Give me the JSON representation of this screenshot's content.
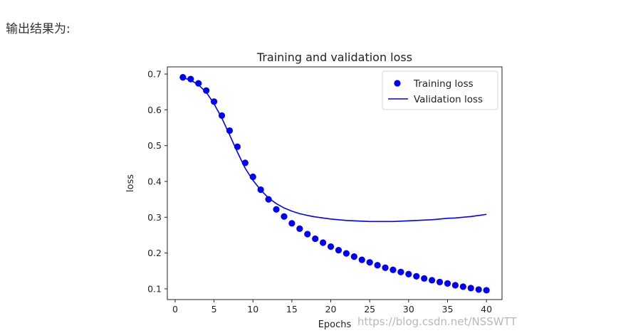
{
  "caption": "输出结果为:",
  "watermark": "https://blog.csdn.net/NSSWTT",
  "chart_data": {
    "type": "line",
    "title": "Training and validation loss",
    "xlabel": "Epochs",
    "ylabel": "loss",
    "xlim": [
      -1.0,
      42.0
    ],
    "ylim": [
      0.07,
      0.72
    ],
    "xticks": [
      0,
      5,
      10,
      15,
      20,
      25,
      30,
      35,
      40
    ],
    "yticks": [
      0.1,
      0.2,
      0.3,
      0.4,
      0.5,
      0.6,
      0.7
    ],
    "ytick_labels": [
      "0.1",
      "0.2",
      "0.3",
      "0.4",
      "0.5",
      "0.6",
      "0.7"
    ],
    "legend_position": "top-right",
    "x": [
      1,
      2,
      3,
      4,
      5,
      6,
      7,
      8,
      9,
      10,
      11,
      12,
      13,
      14,
      15,
      16,
      17,
      18,
      19,
      20,
      21,
      22,
      23,
      24,
      25,
      26,
      27,
      28,
      29,
      30,
      31,
      32,
      33,
      34,
      35,
      36,
      37,
      38,
      39,
      40
    ],
    "series": [
      {
        "name": "Training loss",
        "style": "dots",
        "color": "#0000ff",
        "values": [
          0.691,
          0.686,
          0.674,
          0.654,
          0.623,
          0.584,
          0.542,
          0.497,
          0.452,
          0.413,
          0.377,
          0.35,
          0.322,
          0.302,
          0.283,
          0.268,
          0.253,
          0.24,
          0.229,
          0.218,
          0.208,
          0.199,
          0.19,
          0.181,
          0.174,
          0.166,
          0.159,
          0.153,
          0.147,
          0.141,
          0.135,
          0.129,
          0.124,
          0.119,
          0.115,
          0.11,
          0.106,
          0.102,
          0.098,
          0.096
        ]
      },
      {
        "name": "Validation loss",
        "style": "line",
        "color": "#0000ff",
        "values": [
          0.69,
          0.683,
          0.67,
          0.649,
          0.617,
          0.577,
          0.53,
          0.482,
          0.437,
          0.403,
          0.376,
          0.354,
          0.338,
          0.326,
          0.317,
          0.31,
          0.305,
          0.301,
          0.298,
          0.295,
          0.293,
          0.291,
          0.29,
          0.289,
          0.288,
          0.288,
          0.288,
          0.288,
          0.289,
          0.29,
          0.291,
          0.292,
          0.293,
          0.295,
          0.297,
          0.298,
          0.3,
          0.302,
          0.305,
          0.308
        ]
      }
    ]
  }
}
